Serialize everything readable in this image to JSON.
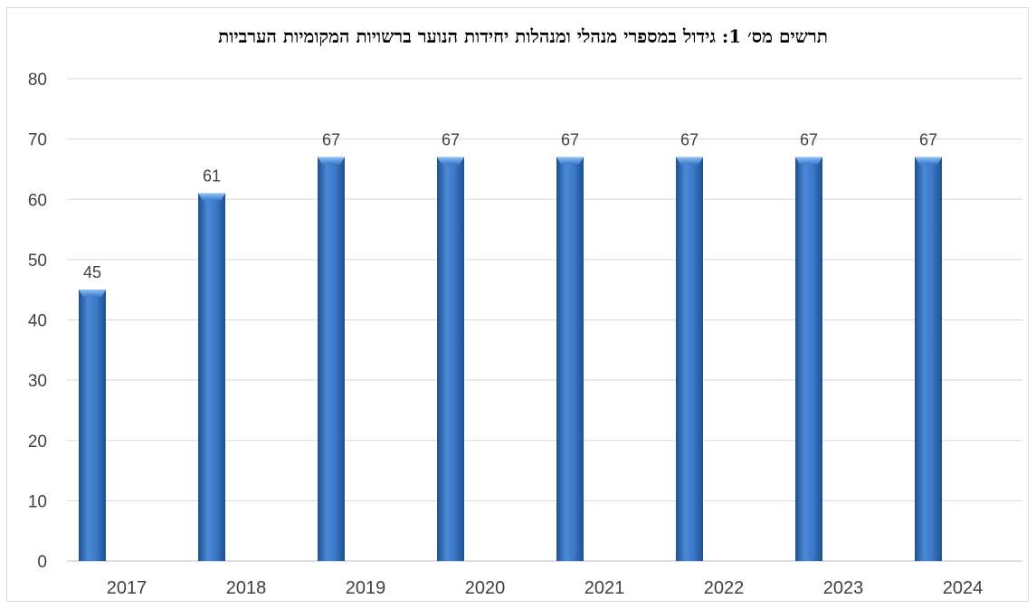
{
  "chart_data": {
    "type": "bar",
    "title": "תרשים מס׳ 1: גידול במספרי מנהלי ומנהלות יחידות הנוער ברשויות המקומיות הערביות",
    "categories": [
      "2017",
      "2018",
      "2019",
      "2020",
      "2021",
      "2022",
      "2023",
      "2024"
    ],
    "values": [
      45,
      61,
      67,
      67,
      67,
      67,
      67,
      67
    ],
    "data_labels": [
      "45",
      "61",
      "67",
      "67",
      "67",
      "67",
      "67",
      "67"
    ],
    "ylim": [
      0,
      80
    ],
    "yticks": [
      "0",
      "10",
      "20",
      "30",
      "40",
      "50",
      "60",
      "70",
      "80"
    ],
    "xlabel": "",
    "ylabel": "",
    "grid": true,
    "legend": "none",
    "colors": {
      "bar": "#3a78c9",
      "bar_dark": "#1f4f8f",
      "bar_light": "#6aa5ea",
      "grid": "#d9d9d9",
      "text": "#404040"
    }
  }
}
